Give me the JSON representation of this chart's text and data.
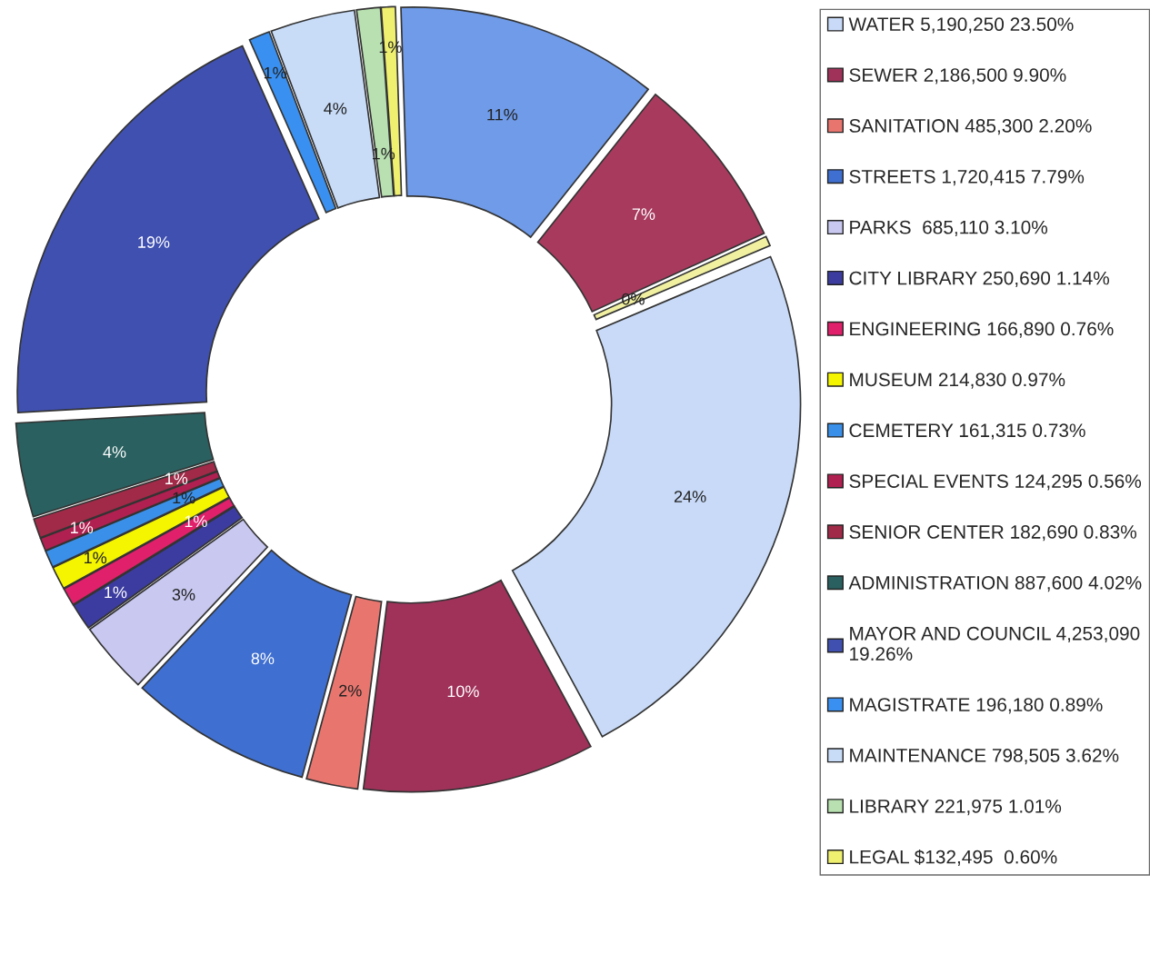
{
  "chart_data": {
    "type": "donut",
    "categories": [
      "WATER 5,190,250 23.50%",
      "SEWER 2,186,500 9.90%",
      "SANITATION 485,300 2.20%",
      "STREETS 1,720,415 7.79%",
      "PARKS  685,110 3.10%",
      "CITY LIBRARY 250,690 1.14%",
      "ENGINEERING 166,890 0.76%",
      "MUSEUM 214,830 0.97%",
      "CEMETERY 161,315 0.73%",
      "SPECIAL EVENTS 124,295 0.56%",
      "SENIOR CENTER 182,690 0.83%",
      "ADMINISTRATION 887,600 4.02%",
      "MAYOR AND COUNCIL 4,253,090\n19.26%",
      "MAGISTRATE 196,180 0.89%",
      "MAINTENANCE 798,505 3.62%",
      "LIBRARY 221,975 1.01%",
      "LEGAL $132,495  0.60%",
      null,
      null,
      null
    ],
    "values": [
      23.5,
      9.9,
      2.2,
      7.79,
      3.1,
      1.14,
      0.76,
      0.97,
      0.73,
      0.56,
      0.83,
      4.02,
      19.26,
      0.89,
      3.62,
      1.01,
      0.6,
      11.2,
      7.5,
      0.42
    ],
    "colors": [
      "#c8daf7",
      "#a0325a",
      "#e8766f",
      "#3f6fd0",
      "#c8c8f0",
      "#3c3ca0",
      "#e0206a",
      "#f5f500",
      "#3a90e8",
      "#b02050",
      "#a02a48",
      "#2a6060",
      "#4050b0",
      "#3a90f0",
      "#c8dcf8",
      "#b8e0b0",
      "#f0f070",
      "#6f9be8",
      "#a83a5e",
      "#f0f0a0"
    ],
    "value_labels": [
      "24%",
      "10%",
      "2%",
      "8%",
      "3%",
      "1%",
      "1%",
      "1%",
      "1%",
      "1%",
      "1%",
      "4%",
      "19%",
      "1%",
      "4%",
      "1%",
      "1%",
      "11%",
      "7%",
      "0%"
    ],
    "legend": "right"
  }
}
